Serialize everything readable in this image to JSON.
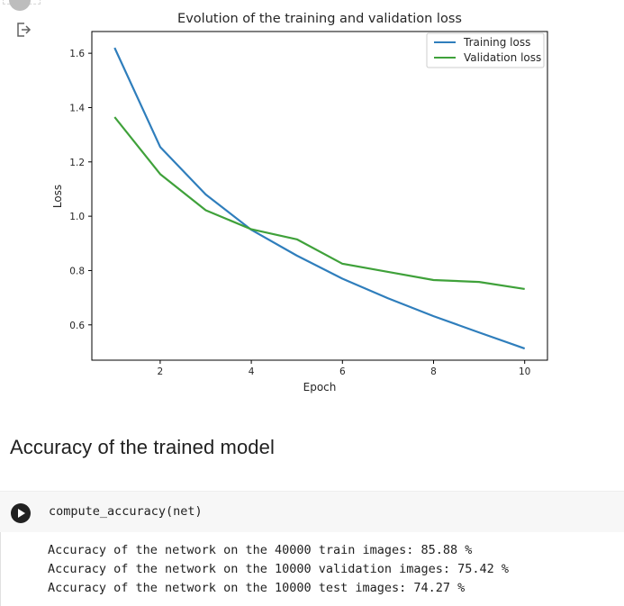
{
  "icons": {
    "output": "output-redirect-icon",
    "run": "play-icon"
  },
  "chart_data": {
    "type": "line",
    "title": "Evolution of the training and validation loss",
    "xlabel": "Epoch",
    "ylabel": "Loss",
    "x": [
      1,
      2,
      3,
      4,
      5,
      6,
      7,
      8,
      9,
      10
    ],
    "xlim": [
      0.5,
      10.5
    ],
    "ylim": [
      0.47,
      1.68
    ],
    "xticks": [
      2,
      4,
      6,
      8,
      10
    ],
    "yticks": [
      0.6,
      0.8,
      1.0,
      1.2,
      1.4,
      1.6
    ],
    "ytick_labels": [
      "0.6",
      "0.8",
      "1.0",
      "1.2",
      "1.4",
      "1.6"
    ],
    "grid": false,
    "legend_position": "top-right",
    "series": [
      {
        "name": "Training loss",
        "color": "#2f7ebc",
        "values": [
          1.62,
          1.255,
          1.08,
          0.95,
          0.855,
          0.77,
          0.698,
          0.632,
          0.572,
          0.513
        ]
      },
      {
        "name": "Validation loss",
        "color": "#3fa13a",
        "values": [
          1.365,
          1.155,
          1.022,
          0.952,
          0.915,
          0.825,
          0.795,
          0.765,
          0.758,
          0.732
        ]
      }
    ]
  },
  "heading": "Accuracy of the trained model",
  "code_cell": {
    "source": "compute_accuracy(net)"
  },
  "output": {
    "lines": [
      "Accuracy of the network on the 40000 train images: 85.88 %",
      "Accuracy of the network on the 10000 validation images: 75.42 %",
      "Accuracy of the network on the 10000 test images: 74.27 %"
    ]
  }
}
